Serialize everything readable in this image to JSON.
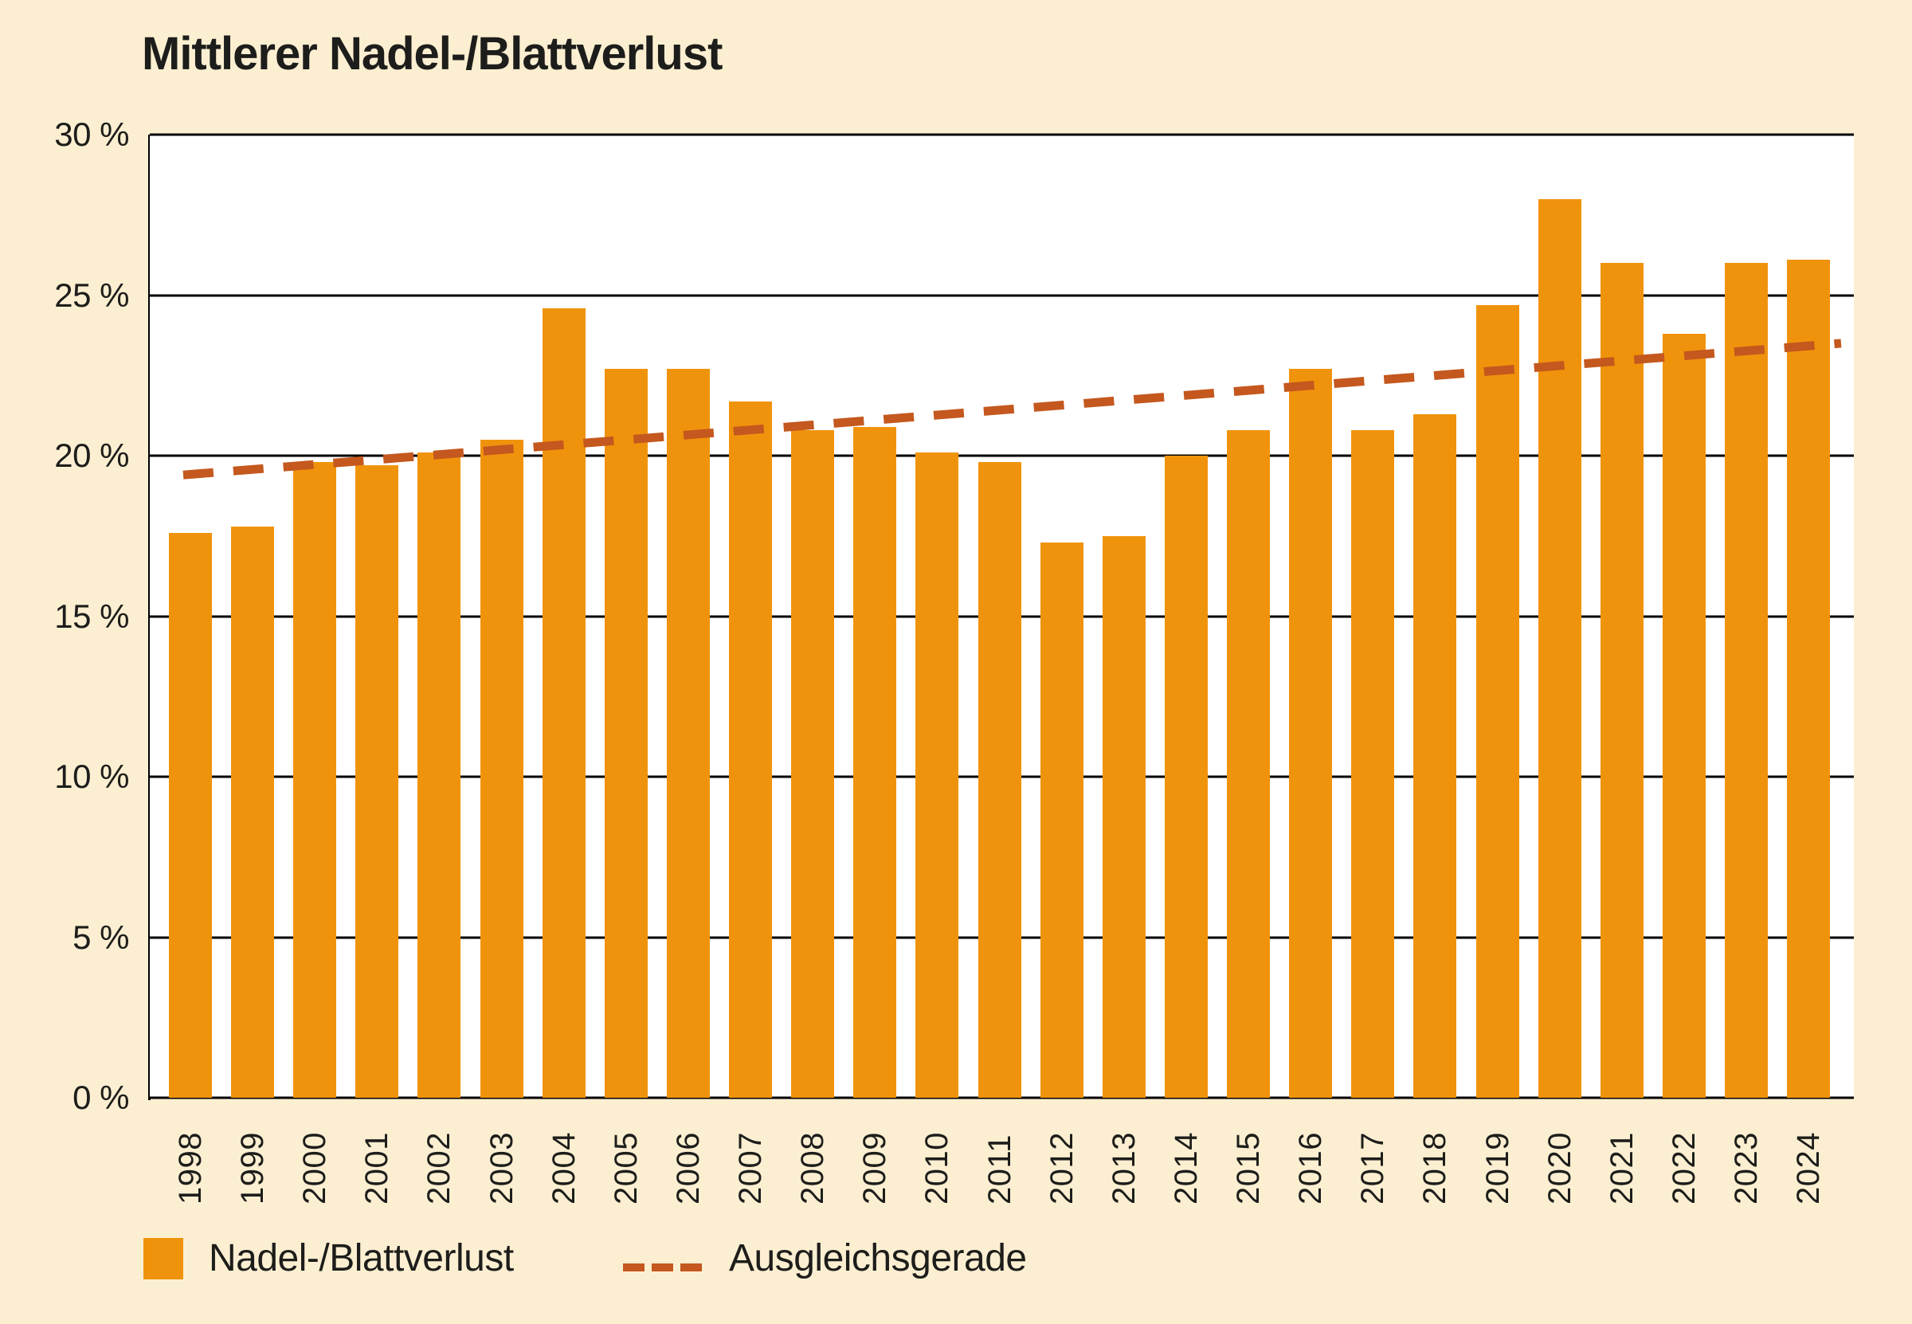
{
  "chart_data": {
    "type": "bar",
    "title": "Mittlerer Nadel-/Blattverlust",
    "categories": [
      "1998",
      "1999",
      "2000",
      "2001",
      "2002",
      "2003",
      "2004",
      "2005",
      "2006",
      "2007",
      "2008",
      "2009",
      "2010",
      "2011",
      "2012",
      "2013",
      "2014",
      "2015",
      "2016",
      "2017",
      "2018",
      "2019",
      "2020",
      "2021",
      "2022",
      "2023",
      "2024"
    ],
    "values": [
      17.6,
      17.8,
      19.8,
      19.7,
      20.1,
      20.5,
      24.6,
      22.7,
      22.7,
      21.7,
      20.8,
      20.9,
      20.1,
      19.8,
      17.3,
      17.5,
      20.0,
      20.8,
      22.7,
      20.8,
      21.3,
      24.7,
      28.0,
      26.0,
      23.8,
      26.0,
      26.1
    ],
    "series_name": "Nadel-/Blattverlust",
    "xlabel": "",
    "ylabel": "",
    "ylim": [
      0,
      30
    ],
    "ytick_values": [
      30,
      25,
      20,
      15,
      10,
      5,
      0
    ],
    "ytick_labels": [
      "30 %",
      "25 %",
      "20 %",
      "15 %",
      "10 %",
      "5 %",
      "0 %"
    ],
    "grid": "horizontal",
    "legend_position": "bottom",
    "trendline": {
      "name": "Ausgleichsgerade",
      "style": "dashed",
      "start_value": 19.4,
      "end_value": 23.5
    },
    "legend": [
      {
        "label": "Nadel-/Blattverlust",
        "swatch": "bar-square"
      },
      {
        "label": "Ausgleichsgerade",
        "swatch": "dashed-line"
      }
    ],
    "colors": {
      "bar": "#F0930C",
      "trend": "#C4581E",
      "background": "#FCEFD1",
      "plot_background": "#FFFFFF",
      "grid": "#000000",
      "text": "#1D1D1B"
    }
  }
}
